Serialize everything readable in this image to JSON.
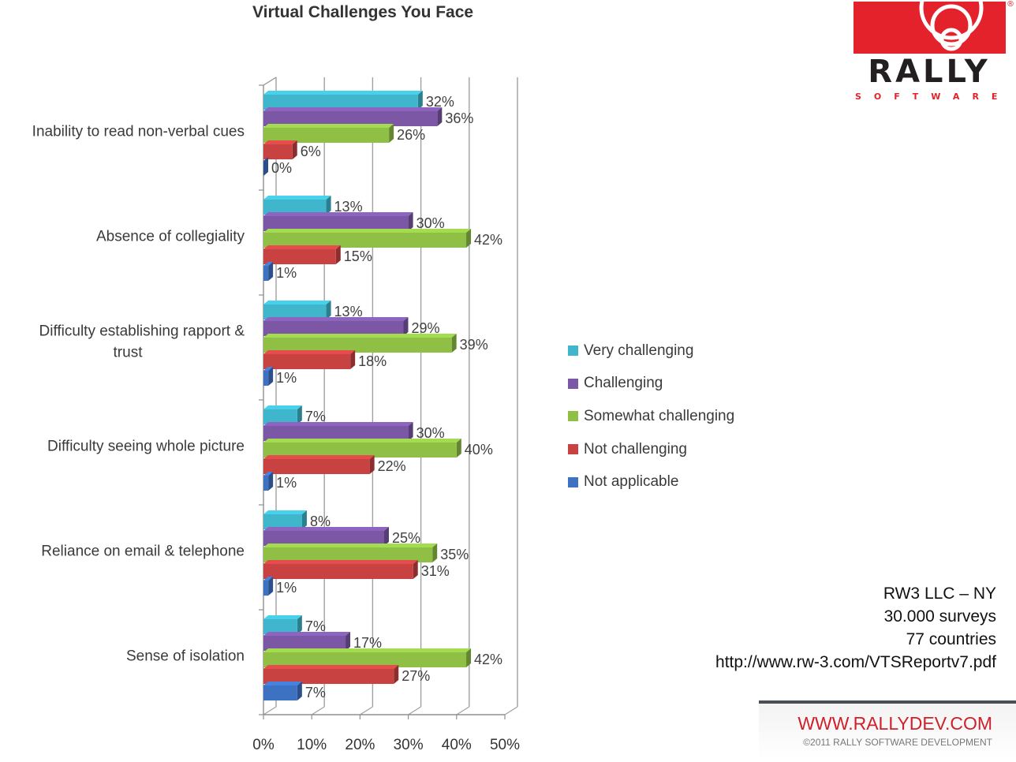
{
  "chart_data": {
    "type": "bar",
    "orientation": "horizontal",
    "title": "Virtual Challenges You Face",
    "categories": [
      "Inability to read non-verbal cues",
      "Absence of collegiality",
      "Difficulty establishing rapport & trust",
      "Difficulty seeing whole picture",
      "Reliance on email & telephone",
      "Sense of isolation"
    ],
    "category_lines": [
      [
        "Inability to read non-verbal cues"
      ],
      [
        "Absence of collegiality"
      ],
      [
        "Difficulty establishing rapport &",
        "trust"
      ],
      [
        "Difficulty seeing whole picture"
      ],
      [
        "Reliance on email & telephone"
      ],
      [
        "Sense of isolation"
      ]
    ],
    "series": [
      {
        "name": "Very challenging",
        "color": "#3fb6cc",
        "values": [
          32,
          13,
          13,
          7,
          8,
          7
        ]
      },
      {
        "name": "Challenging",
        "color": "#7b57a6",
        "values": [
          36,
          30,
          29,
          30,
          25,
          17
        ]
      },
      {
        "name": "Somewhat challenging",
        "color": "#8fbf45",
        "values": [
          26,
          42,
          39,
          40,
          35,
          42
        ]
      },
      {
        "name": "Not challenging",
        "color": "#c94242",
        "values": [
          6,
          15,
          18,
          22,
          31,
          27
        ]
      },
      {
        "name": "Not applicable",
        "color": "#3d71c2",
        "values": [
          0,
          1,
          1,
          1,
          1,
          7
        ]
      }
    ],
    "value_labels": [
      [
        "32%",
        "36%",
        "26%",
        "6%",
        "0%"
      ],
      [
        "13%",
        "30%",
        "42%",
        "15%",
        "1%"
      ],
      [
        "13%",
        "29%",
        "39%",
        "18%",
        "1%"
      ],
      [
        "7%",
        "30%",
        "40%",
        "22%",
        "1%"
      ],
      [
        "8%",
        "25%",
        "35%",
        "31%",
        "1%"
      ],
      [
        "7%",
        "17%",
        "42%",
        "27%",
        "7%"
      ]
    ],
    "xlim": [
      0,
      50
    ],
    "x_ticks": [
      0,
      10,
      20,
      30,
      40,
      50
    ],
    "x_tick_labels": [
      "0%",
      "10%",
      "20%",
      "30%",
      "40%",
      "50%"
    ],
    "grid": true,
    "legend_position": "right",
    "style": "3d"
  },
  "source": {
    "lines": [
      "RW3 LLC – NY",
      "30.000 surveys",
      "77 countries",
      "http://www.rw-3.com/VTSReportv7.pdf"
    ]
  },
  "logo": {
    "name": "RALLY",
    "sub": "SOFTWARE",
    "reg": "®"
  },
  "footer": {
    "url": "WWW.RALLYDEV.COM",
    "copyright": "©2011 RALLY SOFTWARE DEVELOPMENT"
  }
}
